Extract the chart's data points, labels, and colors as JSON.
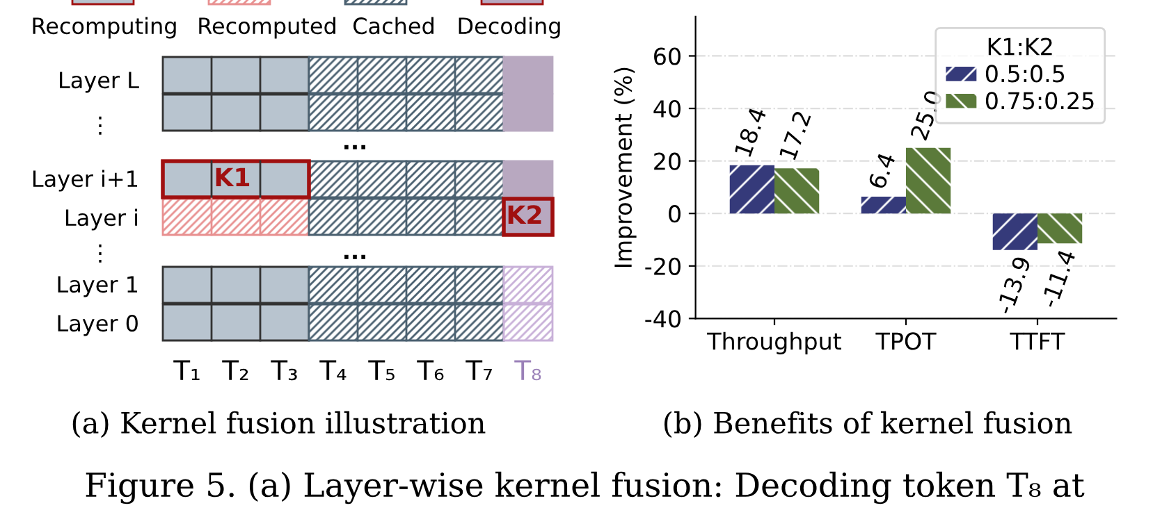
{
  "chart_data": [
    {
      "type": "other",
      "annotations": [
        "Recomputing",
        "Recomputed",
        "Cached",
        "Decoding",
        "Layer L",
        "⋮",
        "Layer i+1",
        "Layer i",
        "⋮",
        "Layer 1",
        "Layer 0",
        "...",
        "...",
        "K1",
        "K2",
        "T₁",
        "T₂",
        "T₃",
        "T₄",
        "T₅",
        "T₆",
        "T₇",
        "T₈",
        "(a) Kernel fusion illustration",
        "Figure 5. (a) Layer-wise kernel fusion: Decoding token T₈ at"
      ]
    },
    {
      "type": "bar",
      "categories": [
        "Throughput",
        "TPOT",
        "TTFT"
      ],
      "series": [
        {
          "name": "0.5:0.5",
          "color": "#353a7a",
          "values": [
            18.4,
            6.4,
            -13.9
          ],
          "value_labels": [
            "18.4",
            "6.4",
            "-13.9"
          ]
        },
        {
          "name": "0.75:0.25",
          "color": "#5b7a3a",
          "values": [
            17.2,
            25.0,
            -11.4
          ],
          "value_labels": [
            "17.2",
            "25.0",
            "-11.4"
          ]
        }
      ],
      "ylabel": "Improvement (%)",
      "ylim": [
        -40,
        75
      ],
      "yticks": [
        -40,
        -20,
        0,
        20,
        40,
        60
      ],
      "grid": "y",
      "legend": "top right",
      "legend_title": "K1:K2",
      "annotations": [
        "(b) Benefits of kernel fusion"
      ]
    }
  ]
}
